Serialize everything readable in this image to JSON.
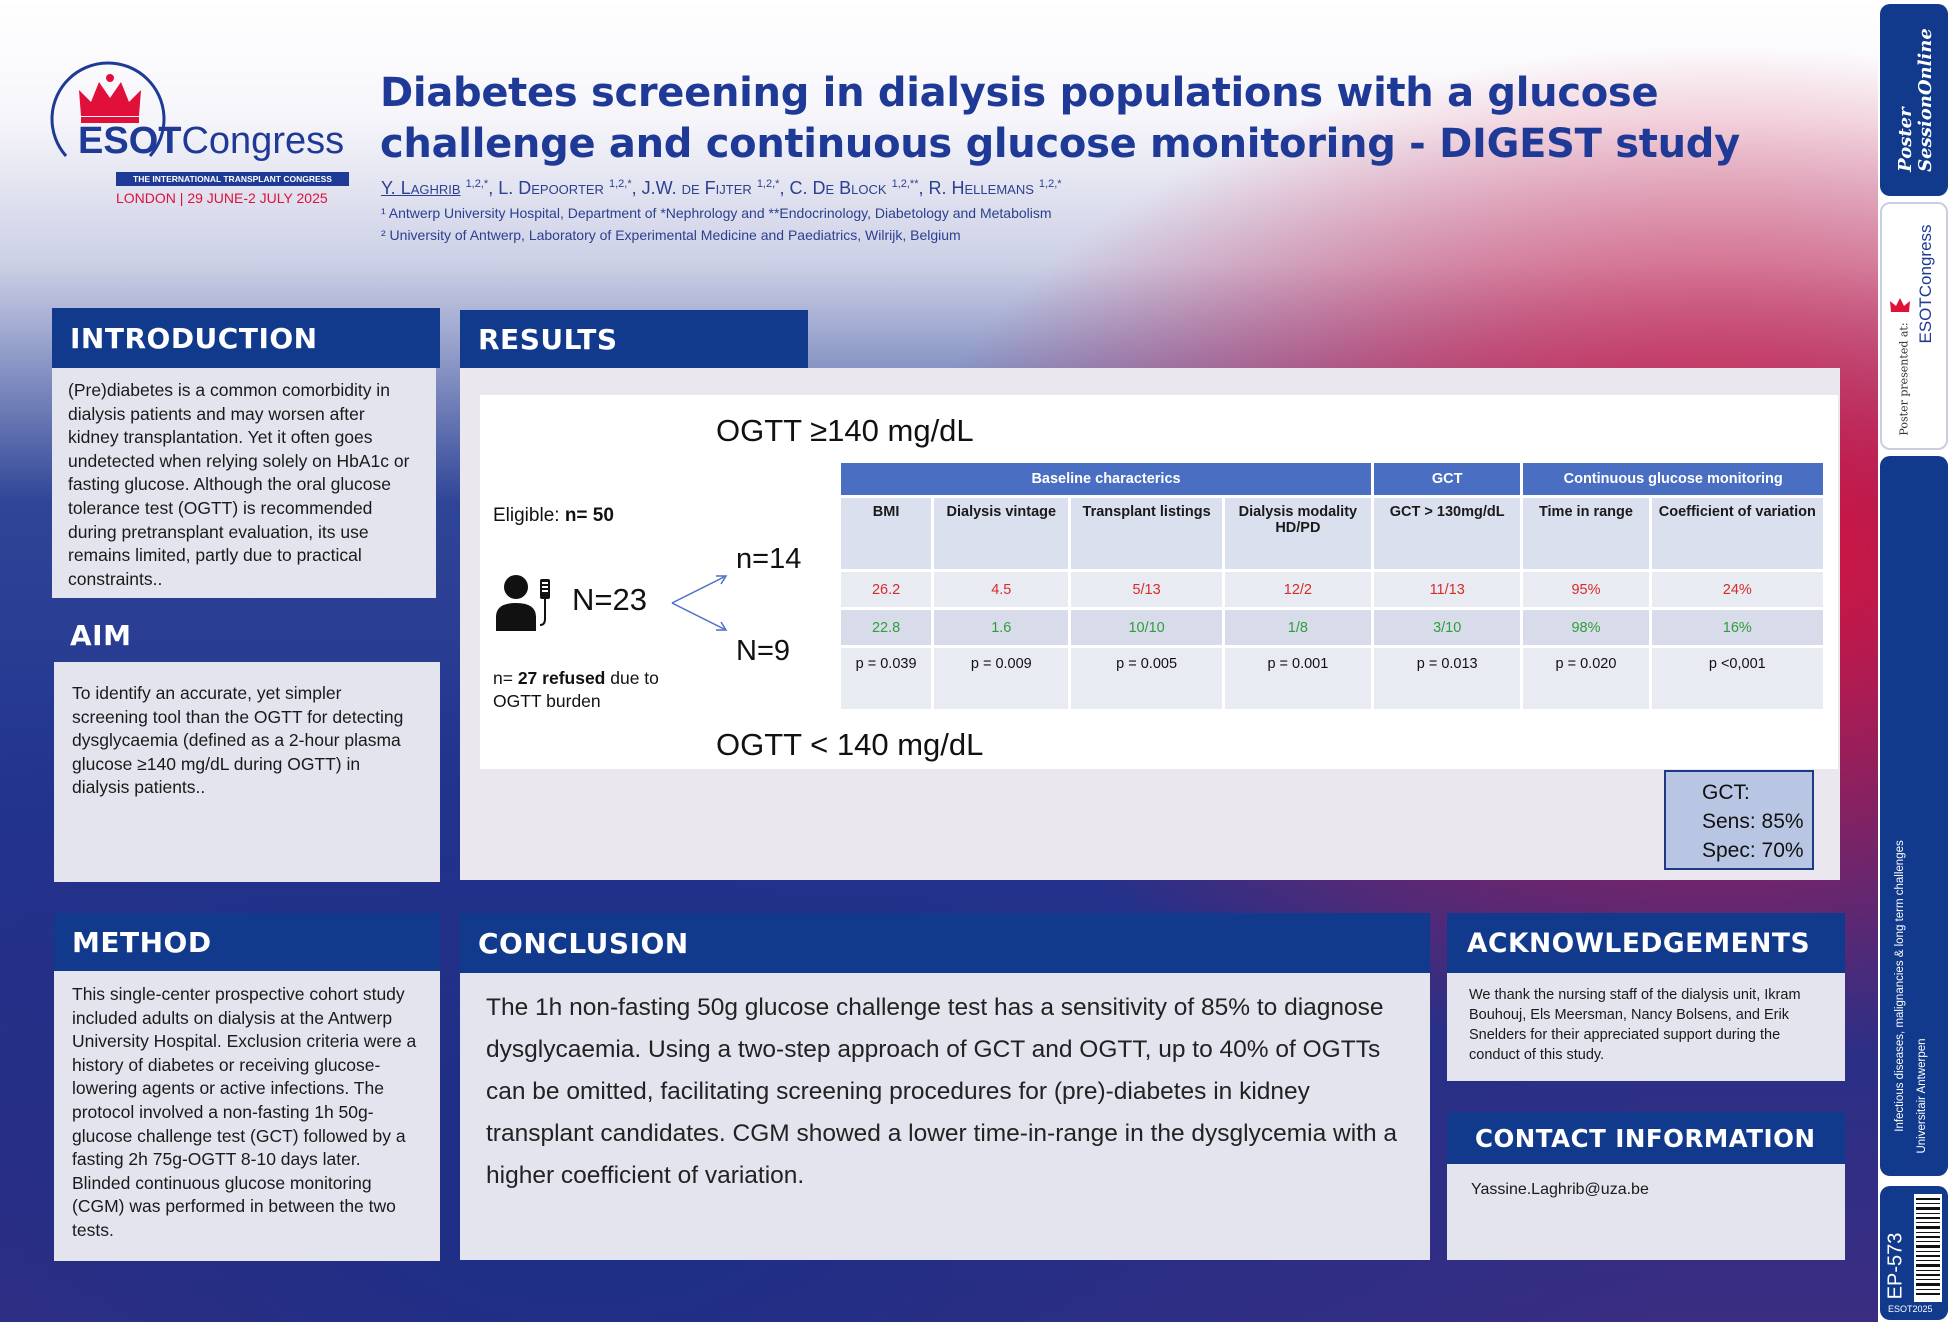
{
  "logo": {
    "brand": "ESOT",
    "brand2": "Congress",
    "tagline": "THE INTERNATIONAL TRANSPLANT CONGRESS",
    "city": "LONDON",
    "dates": "29 JUNE-2 JULY 2025"
  },
  "title": {
    "line1": "Diabetes screening in dialysis populations with a glucose",
    "line2": "challenge and continuous glucose monitoring - DIGEST study"
  },
  "authors": [
    {
      "name": "Y. Laghrib",
      "sup": "1,2,*"
    },
    {
      "name": "L. Depoorter",
      "sup": "1,2,*"
    },
    {
      "name": "J.W. de Fijter",
      "sup": "1,2,*"
    },
    {
      "name": "C. De Block",
      "sup": "1,2,**"
    },
    {
      "name": "R. Hellemans",
      "sup": "1,2,*"
    }
  ],
  "affiliations": [
    "¹ Antwerp University Hospital, Department of *Nephrology and **Endocrinology, Diabetology and Metabolism",
    "² University of Antwerp, Laboratory of Experimental Medicine and Paediatrics, Wilrijk, Belgium"
  ],
  "introduction": {
    "heading": "INTRODUCTION",
    "text": "(Pre)diabetes is a common comorbidity in dialysis patients and may worsen after kidney transplantation. Yet it often goes undetected when relying solely on HbA1c or fasting glucose. Although the oral glucose tolerance test (OGTT) is recommended during pretransplant evaluation, its use remains limited, partly due to practical constraints.."
  },
  "aim": {
    "heading": "AIM",
    "text": "To identify an accurate, yet simpler screening tool than the OGTT for detecting dysglycaemia (defined as a 2-hour plasma glucose ≥140 mg/dL during OGTT) in dialysis patients.."
  },
  "method": {
    "heading": "METHOD",
    "text": "This single-center prospective cohort study included adults on dialysis at the Antwerp University Hospital. Exclusion criteria were a history of diabetes or receiving glucose-lowering agents or active infections. The protocol involved a non-fasting 1h 50g-glucose challenge test (GCT) followed by a fasting 2h 75g-OGTT 8-10 days later. Blinded continuous glucose monitoring (CGM) was performed in between the two tests."
  },
  "results": {
    "heading": "RESULTS",
    "ogtt_high": "OGTT ≥140 mg/dL",
    "ogtt_low": "OGTT < 140 mg/dL",
    "eligible_label": "Eligible: ",
    "eligible_value": "n= 50",
    "n_total": "N=23",
    "n_high": "n=14",
    "n_low": "N=9",
    "refused_prefix": "n= ",
    "refused_bold": "27 refused",
    "refused_suffix": " due to OGTT burden",
    "table": {
      "groups": [
        "Baseline characterics",
        "GCT",
        "Continuous glucose monitoring"
      ],
      "columns": [
        "BMI",
        "Dialysis vintage",
        "Transplant listings",
        "Dialysis modality HD/PD",
        "GCT > 130mg/dL",
        "Time in range",
        "Coefficient of variation"
      ],
      "rows": [
        [
          "26.2",
          "4.5",
          "5/13",
          "12/2",
          "11/13",
          "95%",
          "24%"
        ],
        [
          "22.8",
          "1.6",
          "10/10",
          "1/8",
          "3/10",
          "98%",
          "16%"
        ],
        [
          "p = 0.039",
          "p = 0.009",
          "p = 0.005",
          "p = 0.001",
          "p = 0.013",
          "p = 0.020",
          "p <0,001"
        ]
      ]
    },
    "gct_box": {
      "line1": "GCT:",
      "line2": "Sens: 85%",
      "line3": "Spec: 70%"
    }
  },
  "conclusion": {
    "heading": "CONCLUSION",
    "text": "The 1h non-fasting 50g glucose challenge test has a sensitivity of 85% to diagnose dysglycaemia. Using a two-step approach of GCT and OGTT, up to 40% of OGTTs can be omitted, facilitating screening procedures for (pre)-diabetes in kidney transplant candidates. CGM showed a lower time-in-range in the dysglycemia with a higher coefficient of variation."
  },
  "acknowledgements": {
    "heading": "ACKNOWLEDGEMENTS",
    "text": "We thank the nursing staff of the dialysis unit, Ikram Bouhouj, Els Meersman, Nancy Bolsens, and Erik Snelders for their appreciated support during the conduct of this study."
  },
  "contact": {
    "heading": "CONTACT INFORMATION",
    "email": "Yassine.Laghrib@uza.be"
  },
  "strip": {
    "pso_line1": "Poster",
    "pso_line2": "SessionOnline",
    "presented": "Poster presented at:",
    "esot": "ESOTCongress",
    "topic": "Infectious diseases, malignancies & long term challenges",
    "institution": "Universitair Antwerpen",
    "code": "EP-573",
    "event": "ESOT2025"
  },
  "colors": {
    "navy": "#123a8c",
    "title_blue": "#1e3a96",
    "accent_red": "#e0103a",
    "table_header": "#4a6fc2",
    "group1_red": "#d62b2b",
    "group2_green": "#2f9e3a"
  }
}
